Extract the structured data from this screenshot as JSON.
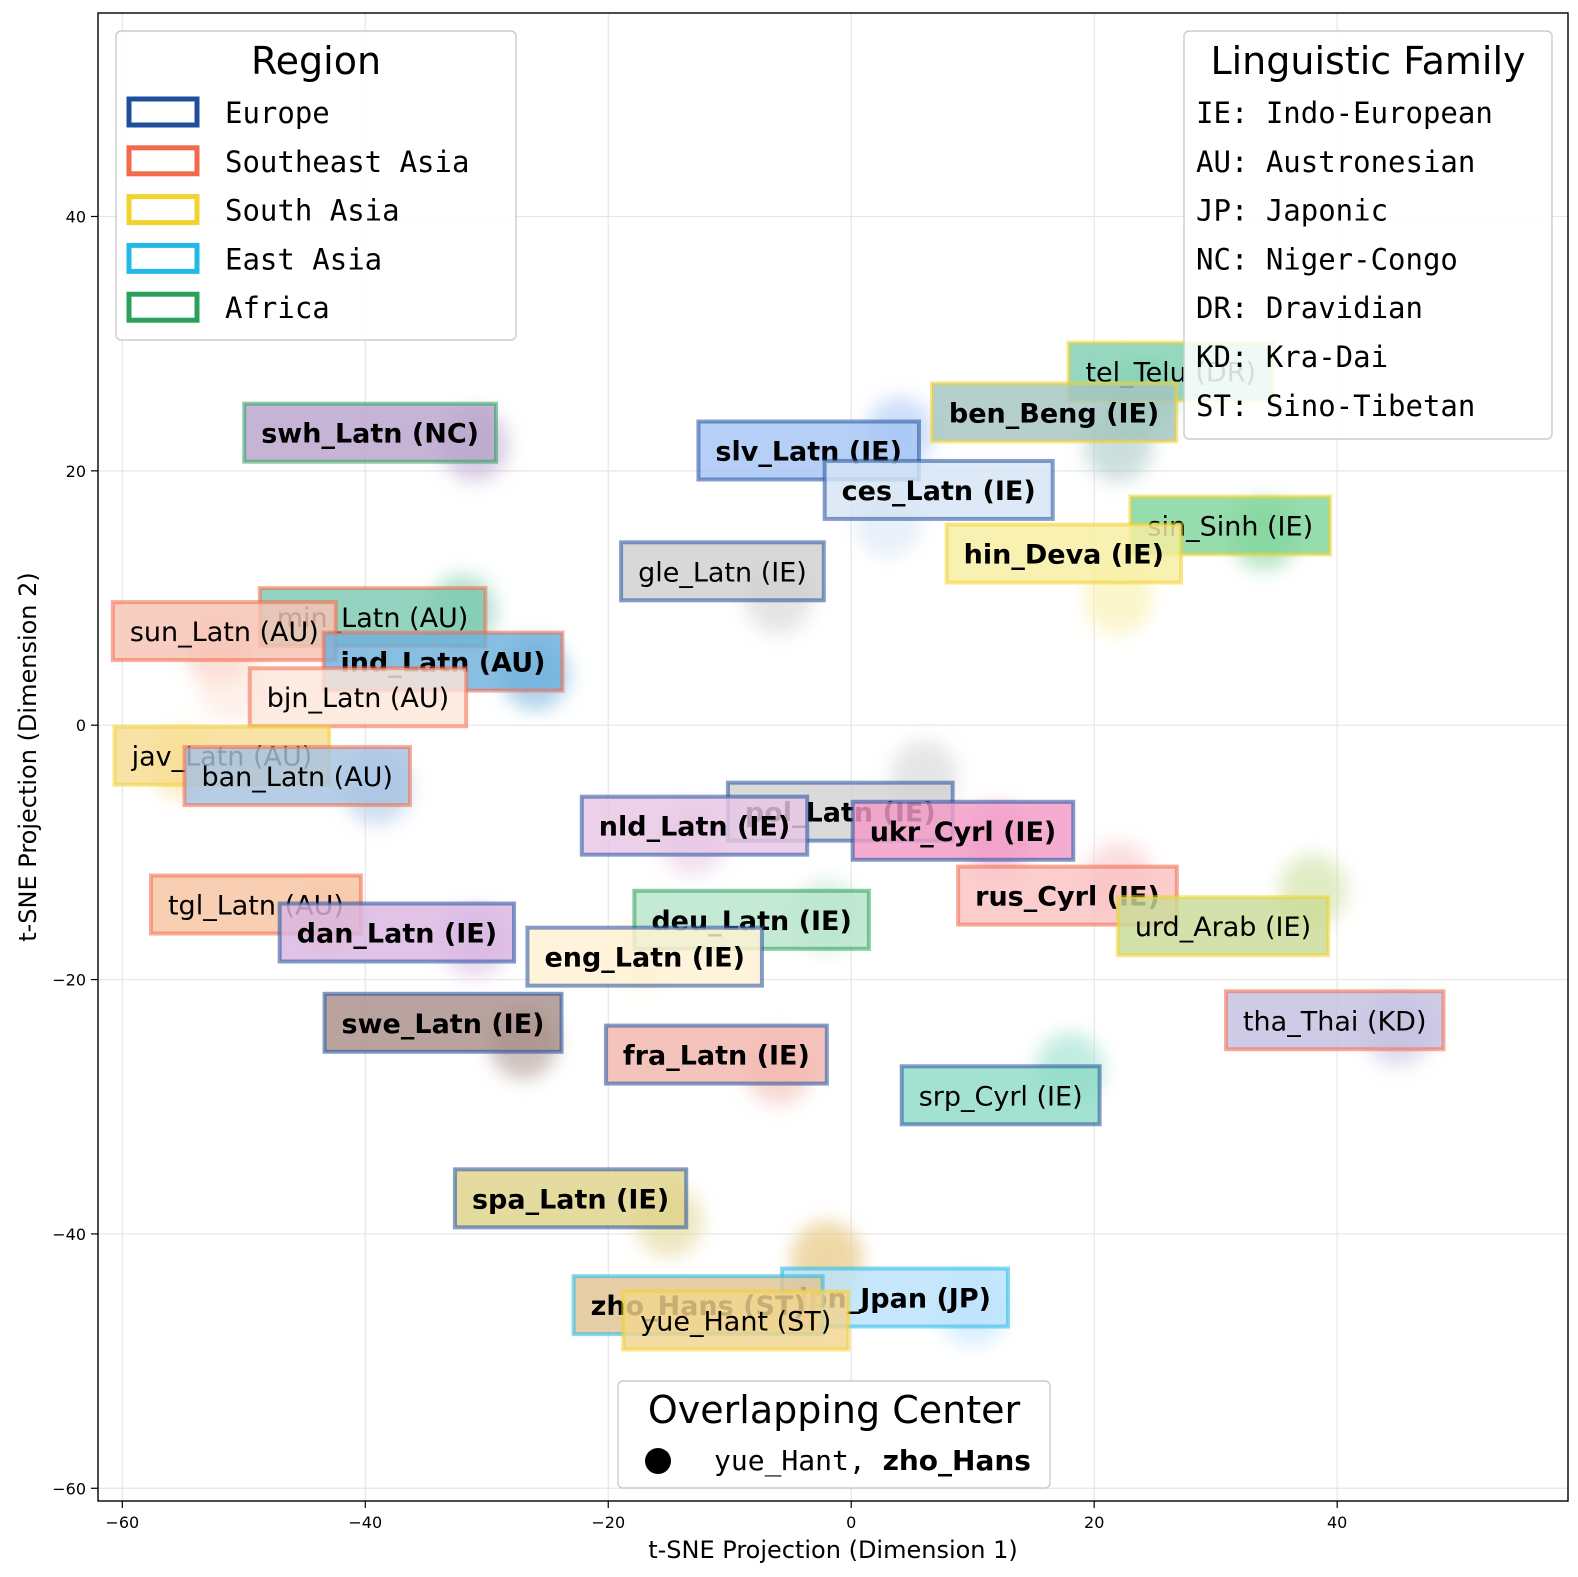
{
  "colors": {
    "Europe": "#1f4e9c",
    "Southeast Asia": "#f26a4b",
    "South Asia": "#f2d22e",
    "East Asia": "#22b9e8",
    "Africa": "#2aa05a"
  },
  "chart_data": {
    "type": "scatter",
    "title": "",
    "xlabel": "t-SNE Projection (Dimension 1)",
    "ylabel": "t-SNE Projection (Dimension 2)",
    "xlim": [
      -62,
      59
    ],
    "ylim": [
      -61,
      56
    ],
    "xticks": [
      -60,
      -40,
      -20,
      0,
      20,
      40
    ],
    "yticks": [
      -60,
      -40,
      -20,
      0,
      20,
      40
    ],
    "xtick_labels": [
      "−60",
      "−40",
      "−20",
      "0",
      "20",
      "40"
    ],
    "ytick_labels": [
      "−60",
      "−40",
      "−20",
      "0",
      "20",
      "40"
    ],
    "grid": true,
    "points": [
      {
        "label": "swh_Latn (NC)",
        "x": -39.6,
        "y": 23.0,
        "cx": -31,
        "cy": 22,
        "region": "Africa",
        "fill": "#b8a3cc",
        "bold": true
      },
      {
        "label": "tel_Telu (DR)",
        "x": 26.3,
        "y": 27.8,
        "cx": 24,
        "cy": 26,
        "region": "South Asia",
        "fill": "#7fcfb1",
        "bold": false
      },
      {
        "label": "ben_Beng (IE)",
        "x": 16.7,
        "y": 24.6,
        "cx": 22,
        "cy": 22,
        "region": "South Asia",
        "fill": "#a3c4c1",
        "bold": true
      },
      {
        "label": "slv_Latn (IE)",
        "x": -3.5,
        "y": 21.6,
        "cx": 4,
        "cy": 23,
        "region": "Europe",
        "fill": "#a6c4f4",
        "bold": true
      },
      {
        "label": "ces_Latn (IE)",
        "x": 7.2,
        "y": 18.5,
        "cx": 3,
        "cy": 16,
        "region": "Europe",
        "fill": "#d6e4f4",
        "bold": true
      },
      {
        "label": "sin_Sinh (IE)",
        "x": 31.2,
        "y": 15.7,
        "cx": 34,
        "cy": 15,
        "region": "South Asia",
        "fill": "#7fd49a",
        "bold": false
      },
      {
        "label": "hin_Deva (IE)",
        "x": 17.5,
        "y": 13.5,
        "cx": 22,
        "cy": 10,
        "region": "South Asia",
        "fill": "#f7eea1",
        "bold": true
      },
      {
        "label": "gle_Latn (IE)",
        "x": -10.6,
        "y": 12.1,
        "cx": -6,
        "cy": 10,
        "region": "Europe",
        "fill": "#cfcfcf",
        "bold": false
      },
      {
        "label": "min_Latn (AU)",
        "x": -39.4,
        "y": 8.5,
        "cx": -32,
        "cy": 9,
        "region": "Southeast Asia",
        "fill": "#7cc9b1",
        "bold": false
      },
      {
        "label": "sun_Latn (AU)",
        "x": -51.6,
        "y": 7.4,
        "cx": -52,
        "cy": 6,
        "region": "Southeast Asia",
        "fill": "#f6c3b5",
        "bold": false
      },
      {
        "label": "ind_Latn (AU)",
        "x": -33.6,
        "y": 5.0,
        "cx": -26,
        "cy": 4,
        "region": "Southeast Asia",
        "fill": "#6eb0dc",
        "bold": true
      },
      {
        "label": "bjn_Latn (AU)",
        "x": -40.6,
        "y": 2.2,
        "cx": -51,
        "cy": 3,
        "region": "Southeast Asia",
        "fill": "#fde5da",
        "bold": false
      },
      {
        "label": "jav_Latn (AU)",
        "x": -51.8,
        "y": -2.4,
        "cx": -55,
        "cy": -3,
        "region": "South Asia",
        "fill": "#f7dc91",
        "bold": false
      },
      {
        "label": "ban_Latn (AU)",
        "x": -45.6,
        "y": -4.0,
        "cx": -39,
        "cy": -5,
        "region": "Southeast Asia",
        "fill": "#a6c2e2",
        "bold": false
      },
      {
        "label": "pol_Latn (IE)",
        "x": -0.9,
        "y": -6.8,
        "cx": 6,
        "cy": -4,
        "region": "Europe",
        "fill": "#d2d2d2",
        "bold": true
      },
      {
        "label": "nld_Latn (IE)",
        "x": -12.9,
        "y": -7.9,
        "cx": -13,
        "cy": -9,
        "region": "Europe",
        "fill": "#e8c6e4",
        "bold": true
      },
      {
        "label": "ukr_Cyrl (IE)",
        "x": 9.2,
        "y": -8.3,
        "cx": 12,
        "cy": -9,
        "region": "Europe",
        "fill": "#f29bc6",
        "bold": true
      },
      {
        "label": "tgl_Latn (AU)",
        "x": -49.0,
        "y": -14.1,
        "cx": -43,
        "cy": -15,
        "region": "Southeast Asia",
        "fill": "#f6c4a2",
        "bold": false
      },
      {
        "label": "rus_Cyrl (IE)",
        "x": 17.8,
        "y": -13.4,
        "cx": 22,
        "cy": -12,
        "region": "Southeast Asia",
        "fill": "#fac2c2",
        "bold": true
      },
      {
        "label": "urd_Arab (IE)",
        "x": 30.6,
        "y": -15.8,
        "cx": 38,
        "cy": -13,
        "region": "South Asia",
        "fill": "#c9dc97",
        "bold": false
      },
      {
        "label": "deu_Latn (IE)",
        "x": -8.2,
        "y": -15.3,
        "cx": -2,
        "cy": -15,
        "region": "Africa",
        "fill": "#b7e4cc",
        "bold": true
      },
      {
        "label": "dan_Latn (IE)",
        "x": -37.4,
        "y": -16.3,
        "cx": -31,
        "cy": -17,
        "region": "Europe",
        "fill": "#d9b6e2",
        "bold": true
      },
      {
        "label": "eng_Latn (IE)",
        "x": -17.0,
        "y": -18.2,
        "cx": -17,
        "cy": -18,
        "region": "Europe",
        "fill": "#fff1d3",
        "bold": true
      },
      {
        "label": "tha_Thai (KD)",
        "x": 39.8,
        "y": -23.2,
        "cx": 45,
        "cy": -24,
        "region": "Southeast Asia",
        "fill": "#c3bfe0",
        "bold": false
      },
      {
        "label": "swe_Latn (IE)",
        "x": -33.6,
        "y": -23.4,
        "cx": -27,
        "cy": -25,
        "region": "Europe",
        "fill": "#a88f89",
        "bold": true
      },
      {
        "label": "fra_Latn (IE)",
        "x": -11.1,
        "y": -25.9,
        "cx": -6,
        "cy": -27,
        "region": "Europe",
        "fill": "#f2b7ad",
        "bold": true
      },
      {
        "label": "srp_Cyrl (IE)",
        "x": 12.3,
        "y": -29.1,
        "cx": 18,
        "cy": -27,
        "region": "Europe",
        "fill": "#8fdcc6",
        "bold": false
      },
      {
        "label": "spa_Latn (IE)",
        "x": -23.1,
        "y": -37.2,
        "cx": -15,
        "cy": -39,
        "region": "Europe",
        "fill": "#e0d38a",
        "bold": true
      },
      {
        "label": "jpn_Jpan (JP)",
        "x": 3.6,
        "y": -45.0,
        "cx": 10,
        "cy": -46,
        "region": "East Asia",
        "fill": "#b9e2fb",
        "bold": true
      },
      {
        "label": "zho_Hans (ST)",
        "x": -12.6,
        "y": -45.6,
        "cx": -2,
        "cy": -42,
        "region": "East Asia",
        "fill": "#e0c594",
        "bold": true
      },
      {
        "label": "yue_Hant (ST)",
        "x": -9.5,
        "y": -46.8,
        "cx": -2,
        "cy": -42,
        "region": "South Asia",
        "fill": "#f1d48e",
        "bold": false
      }
    ],
    "legend_region": {
      "title": "Region",
      "placement": "top-left",
      "items": [
        "Europe",
        "Southeast Asia",
        "South Asia",
        "East Asia",
        "Africa"
      ]
    },
    "legend_family": {
      "title": "Linguistic Family",
      "placement": "top-right",
      "items": [
        "IE: Indo-European",
        "AU: Austronesian",
        "JP: Japonic",
        "NC: Niger-Congo",
        "DR: Dravidian",
        "KD: Kra-Dai",
        "ST: Sino-Tibetan"
      ]
    },
    "legend_overlap": {
      "title": "Overlapping Center",
      "placement": "bottom-center",
      "text_normal": "yue_Hant, ",
      "text_bold": "zho_Hans"
    }
  }
}
